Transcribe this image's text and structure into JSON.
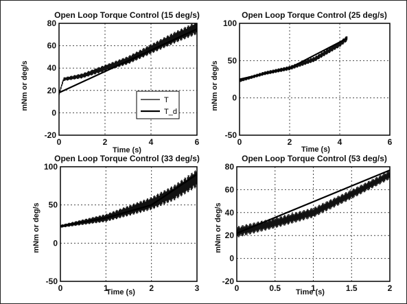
{
  "chart_data": [
    {
      "type": "line",
      "title": "Open Loop Torque Control (15 deg/s)",
      "xlabel": "Time (s)",
      "ylabel": "mNm or deg/s",
      "xlim": [
        0,
        6
      ],
      "ylim": [
        -20,
        80
      ],
      "xticks": [
        0,
        2,
        4,
        6
      ],
      "yticks": [
        -20,
        0,
        20,
        40,
        60,
        80
      ],
      "grid": true,
      "legend": {
        "position": "center-right",
        "entries": [
          "T",
          "T_d"
        ]
      },
      "series": [
        {
          "name": "T",
          "kind": "measured",
          "noise_amp": [
            1.5,
            6
          ],
          "x": [
            0,
            0.2,
            1,
            2,
            3,
            4,
            5,
            6
          ],
          "y": [
            17,
            30,
            33,
            40,
            47,
            57,
            67,
            76
          ]
        },
        {
          "name": "T_d",
          "kind": "desired",
          "x": [
            0,
            6
          ],
          "y": [
            18,
            75
          ]
        }
      ]
    },
    {
      "type": "line",
      "title": "Open Loop Torque Control (25 deg/s)",
      "xlabel": "Time (s)",
      "ylabel": "mNm or deg/s",
      "xlim": [
        0,
        6
      ],
      "ylim": [
        -50,
        100
      ],
      "xticks": [
        0,
        2,
        4,
        6
      ],
      "yticks": [
        -50,
        0,
        50,
        100
      ],
      "grid": true,
      "series": [
        {
          "name": "T",
          "kind": "measured",
          "noise_amp": [
            2,
            4
          ],
          "x": [
            0,
            1,
            2,
            3,
            4,
            4.3
          ],
          "y": [
            23,
            33,
            40,
            52,
            72,
            80
          ]
        },
        {
          "name": "T_d",
          "kind": "desired",
          "x": [
            0,
            2,
            4.3
          ],
          "y": [
            25,
            40,
            80
          ]
        }
      ]
    },
    {
      "type": "line",
      "title": "Open Loop Torque Control (33 deg/s)",
      "xlabel": "Time (s)",
      "ylabel": "mNm or deg/s",
      "xlim": [
        0,
        3
      ],
      "ylim": [
        -50,
        100
      ],
      "xticks": [
        0,
        1,
        2,
        3
      ],
      "yticks": [
        -50,
        0,
        50,
        100
      ],
      "grid": true,
      "series": [
        {
          "name": "T",
          "kind": "measured",
          "noise_amp": [
            2,
            12
          ],
          "x": [
            0,
            1,
            2,
            2.5,
            3
          ],
          "y": [
            22,
            33,
            52,
            66,
            85
          ]
        },
        {
          "name": "T_d",
          "kind": "desired",
          "x": [
            0,
            1,
            2,
            3
          ],
          "y": [
            22,
            33,
            50,
            90
          ]
        }
      ]
    },
    {
      "type": "line",
      "title": "Open Loop Torque Control (53 deg/s)",
      "xlabel": "Time (s)",
      "ylabel": "mNm or deg/s",
      "xlim": [
        0,
        2
      ],
      "ylim": [
        -20,
        80
      ],
      "xticks": [
        0,
        0.5,
        1,
        1.5,
        2
      ],
      "xtick_labels": [
        "0",
        "0.5",
        "1",
        "1.5",
        "2"
      ],
      "yticks": [
        -20,
        0,
        20,
        40,
        60,
        80
      ],
      "grid": true,
      "series": [
        {
          "name": "T",
          "kind": "measured",
          "noise_amp": [
            5,
            4
          ],
          "x": [
            0,
            0.5,
            1,
            1.5,
            2
          ],
          "y": [
            23,
            31,
            40,
            56,
            73
          ]
        },
        {
          "name": "T_d",
          "kind": "desired",
          "x": [
            0,
            2
          ],
          "y": [
            22,
            77
          ]
        }
      ]
    }
  ]
}
